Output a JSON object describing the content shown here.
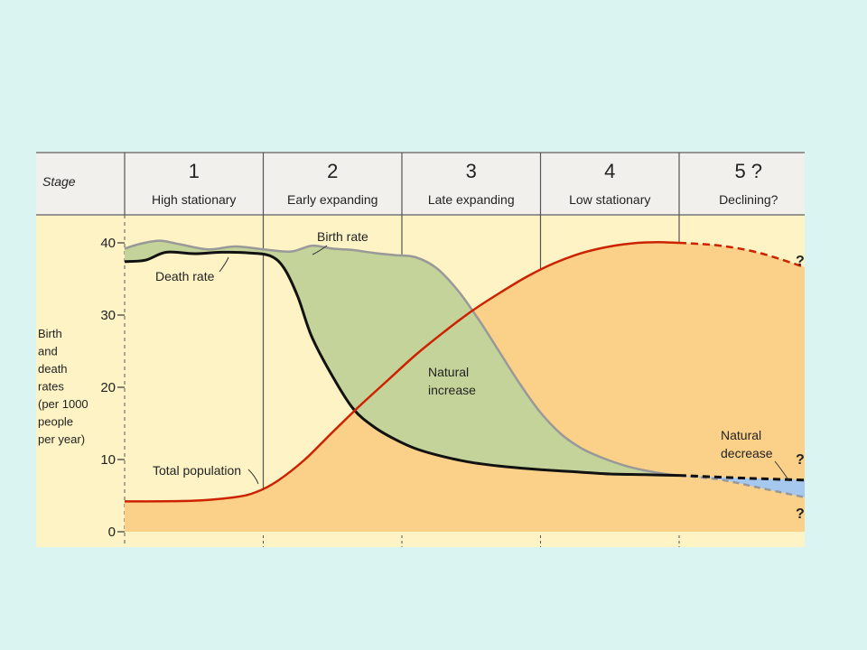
{
  "chart_data": {
    "type": "line",
    "stage_header": "Stage",
    "stages": [
      {
        "number": "1",
        "name": "High stationary"
      },
      {
        "number": "2",
        "name": "Early expanding"
      },
      {
        "number": "3",
        "name": "Late expanding"
      },
      {
        "number": "4",
        "name": "Low stationary"
      },
      {
        "number": "5 ?",
        "name": "Declining?"
      }
    ],
    "ylabel_lines": [
      "Birth",
      "and",
      "death",
      "rates",
      "(per 1000",
      "people",
      "per year)"
    ],
    "ylim": [
      0,
      40
    ],
    "yticks": [
      "0",
      "10",
      "20",
      "30",
      "40"
    ],
    "x_domain": [
      0,
      5
    ],
    "series": [
      {
        "name": "Birth rate",
        "color": "#999999",
        "x": [
          0,
          0.1,
          0.25,
          0.4,
          0.6,
          0.8,
          1.0,
          1.2,
          1.35,
          1.5,
          1.65,
          1.8,
          1.95,
          2.1,
          2.25,
          2.4,
          2.55,
          2.7,
          2.85,
          3.0,
          3.15,
          3.3,
          3.45,
          3.6,
          3.75,
          3.9,
          4.0
        ],
        "y": [
          39.2,
          39.8,
          40.3,
          39.8,
          39.1,
          39.5,
          39.1,
          38.8,
          39.6,
          39.2,
          39.0,
          38.6,
          38.3,
          38.0,
          36.5,
          33.5,
          29.5,
          25.0,
          20.5,
          16.5,
          13.5,
          11.5,
          10.2,
          9.2,
          8.5,
          8.0,
          7.8
        ],
        "projection_x": [
          4.0,
          4.3,
          4.6,
          4.9,
          5.0
        ],
        "projection_y": [
          7.8,
          7.2,
          6.0,
          4.8,
          4.5
        ]
      },
      {
        "name": "Death rate",
        "color": "#111111",
        "x": [
          0,
          0.15,
          0.3,
          0.5,
          0.7,
          0.9,
          1.05,
          1.15,
          1.25,
          1.35,
          1.5,
          1.65,
          1.8,
          1.95,
          2.1,
          2.3,
          2.5,
          2.75,
          3.0,
          3.25,
          3.5,
          3.75,
          4.0
        ],
        "y": [
          37.4,
          37.6,
          38.7,
          38.5,
          38.7,
          38.6,
          38.2,
          36.5,
          32.5,
          27.0,
          21.5,
          17.0,
          14.5,
          12.8,
          11.5,
          10.4,
          9.6,
          9.0,
          8.6,
          8.3,
          8.0,
          7.9,
          7.8
        ],
        "projection_x": [
          4.0,
          4.5,
          5.0
        ],
        "projection_y": [
          7.8,
          7.4,
          7.1
        ]
      },
      {
        "name": "Total population",
        "color": "#cc2200",
        "x": [
          0,
          0.5,
          0.8,
          0.95,
          1.1,
          1.3,
          1.5,
          1.7,
          1.9,
          2.1,
          2.3,
          2.5,
          2.7,
          2.9,
          3.1,
          3.3,
          3.5,
          3.7,
          3.85,
          4.0
        ],
        "y": [
          4.2,
          4.3,
          4.8,
          5.5,
          7.0,
          10.0,
          13.8,
          17.5,
          21.0,
          24.5,
          27.6,
          30.5,
          33.0,
          35.3,
          37.2,
          38.6,
          39.5,
          40.0,
          40.1,
          40.0
        ],
        "projection_x": [
          4.0,
          4.3,
          4.6,
          5.0
        ],
        "projection_y": [
          40.0,
          39.6,
          38.5,
          36.0
        ]
      }
    ],
    "annotations": {
      "birth_rate": "Birth rate",
      "death_rate": "Death rate",
      "total_population": "Total population",
      "natural_increase": [
        "Natural",
        "increase"
      ],
      "natural_decrease": [
        "Natural",
        "decrease"
      ],
      "question_mark": "?"
    },
    "colors": {
      "header_bg": "#f1f0ed",
      "plot_bg": "#fdf3c5",
      "population_fill": "#fbd189",
      "increase_fill": "#c3d39a",
      "decrease_fill": "#a6c8ee",
      "divider": "#555555"
    }
  }
}
